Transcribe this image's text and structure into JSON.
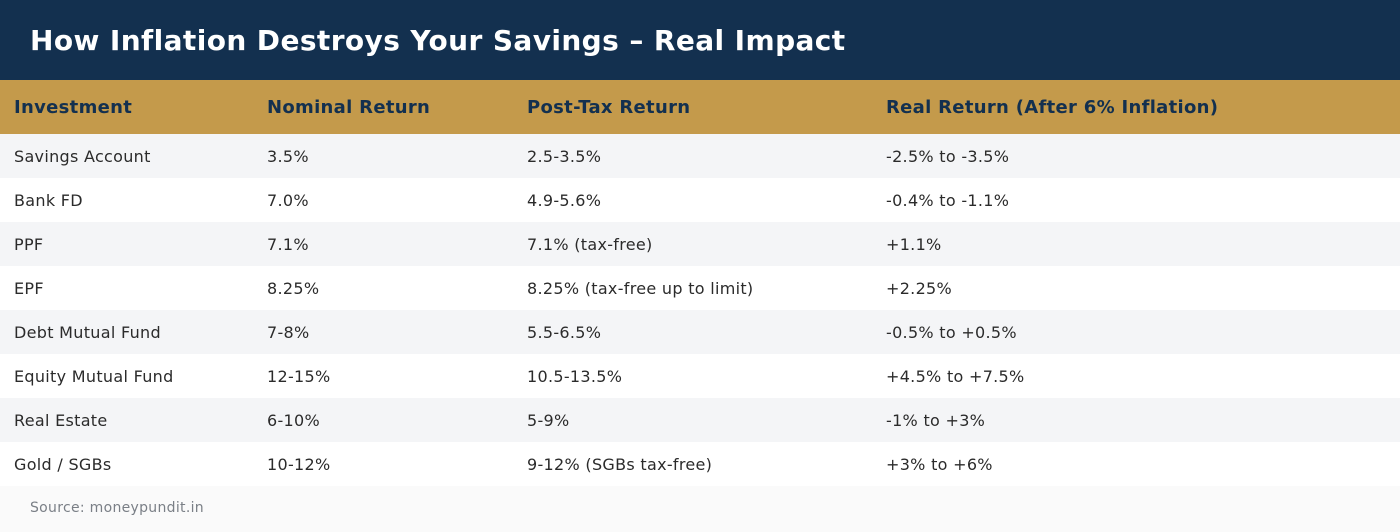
{
  "title": "How Inflation Destroys Your Savings – Real Impact",
  "colors": {
    "header_bg": "#13304f",
    "column_header_bg": "#c49a4b",
    "column_header_text": "#13304f",
    "row_alt_bg": "#f4f5f7"
  },
  "table": {
    "headers": [
      "Investment",
      "Nominal Return",
      "Post-Tax Return",
      "Real Return (After 6% Inflation)"
    ],
    "rows": [
      [
        "Savings Account",
        "3.5%",
        "2.5-3.5%",
        "-2.5% to -3.5%"
      ],
      [
        "Bank FD",
        "7.0%",
        "4.9-5.6%",
        "-0.4% to -1.1%"
      ],
      [
        "PPF",
        "7.1%",
        "7.1% (tax-free)",
        "+1.1%"
      ],
      [
        "EPF",
        "8.25%",
        "8.25% (tax-free up to limit)",
        "+2.25%"
      ],
      [
        "Debt Mutual Fund",
        "7-8%",
        "5.5-6.5%",
        "-0.5% to +0.5%"
      ],
      [
        "Equity Mutual Fund",
        "12-15%",
        "10.5-13.5%",
        "+4.5% to +7.5%"
      ],
      [
        "Real Estate",
        "6-10%",
        "5-9%",
        "-1% to +3%"
      ],
      [
        "Gold / SGBs",
        "10-12%",
        "9-12% (SGBs tax-free)",
        "+3% to +6%"
      ]
    ]
  },
  "source": "Source: moneypundit.in"
}
